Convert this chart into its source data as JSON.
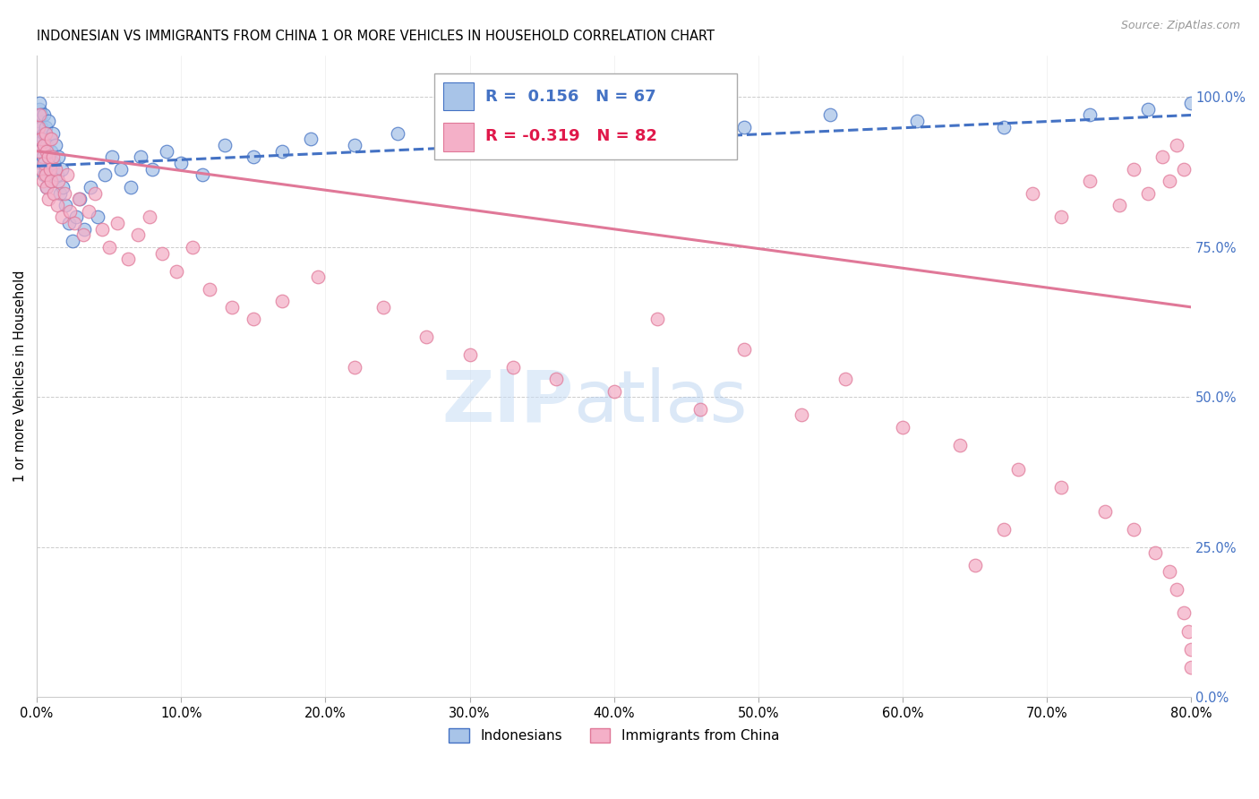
{
  "title": "INDONESIAN VS IMMIGRANTS FROM CHINA 1 OR MORE VEHICLES IN HOUSEHOLD CORRELATION CHART",
  "source": "Source: ZipAtlas.com",
  "ylabel": "1 or more Vehicles in Household",
  "xlabel_vals": [
    0,
    10,
    20,
    30,
    40,
    50,
    60,
    70,
    80
  ],
  "ylabel_vals": [
    0,
    25,
    50,
    75,
    100
  ],
  "xlim": [
    0,
    80
  ],
  "ylim": [
    0,
    107
  ],
  "legend_label1": "Indonesians",
  "legend_label2": "Immigrants from China",
  "r1": 0.156,
  "n1": 67,
  "r2": -0.319,
  "n2": 82,
  "color_blue": "#a8c4e8",
  "color_pink": "#f4b0c8",
  "color_blue_dark": "#4472c4",
  "color_pink_dark": "#e07898",
  "color_blue_text": "#4472c4",
  "color_pink_text": "#e0184a",
  "trend_blue_x0": 0,
  "trend_blue_y0": 88.5,
  "trend_blue_x1": 80,
  "trend_blue_y1": 97.0,
  "trend_pink_x0": 0,
  "trend_pink_y0": 91.0,
  "trend_pink_x1": 80,
  "trend_pink_y1": 65.0,
  "indonesian_x": [
    0.1,
    0.1,
    0.2,
    0.2,
    0.2,
    0.3,
    0.3,
    0.3,
    0.4,
    0.4,
    0.5,
    0.5,
    0.5,
    0.5,
    0.6,
    0.6,
    0.7,
    0.7,
    0.8,
    0.8,
    0.9,
    0.9,
    1.0,
    1.0,
    1.1,
    1.2,
    1.3,
    1.4,
    1.5,
    1.6,
    1.7,
    1.8,
    2.0,
    2.2,
    2.5,
    2.7,
    3.0,
    3.3,
    3.7,
    4.2,
    4.7,
    5.2,
    5.8,
    6.5,
    7.2,
    8.0,
    9.0,
    10.0,
    11.5,
    13.0,
    15.0,
    17.0,
    19.0,
    22.0,
    25.0,
    29.0,
    33.0,
    38.0,
    43.0,
    49.0,
    55.0,
    61.0,
    67.0,
    73.0,
    77.0,
    80.0,
    82.0
  ],
  "indonesian_y": [
    96,
    93,
    98,
    99,
    91,
    95,
    97,
    89,
    93,
    90,
    97,
    94,
    92,
    87,
    95,
    88,
    92,
    85,
    96,
    90,
    88,
    93,
    91,
    86,
    94,
    89,
    92,
    87,
    90,
    84,
    88,
    85,
    82,
    79,
    76,
    80,
    83,
    78,
    85,
    80,
    87,
    90,
    88,
    85,
    90,
    88,
    91,
    89,
    87,
    92,
    90,
    91,
    93,
    92,
    94,
    92,
    95,
    94,
    96,
    95,
    97,
    96,
    95,
    97,
    98,
    99,
    101
  ],
  "china_x": [
    0.1,
    0.2,
    0.2,
    0.3,
    0.3,
    0.4,
    0.5,
    0.5,
    0.6,
    0.6,
    0.7,
    0.7,
    0.8,
    0.8,
    0.9,
    1.0,
    1.0,
    1.1,
    1.2,
    1.3,
    1.4,
    1.5,
    1.7,
    1.9,
    2.1,
    2.3,
    2.6,
    2.9,
    3.2,
    3.6,
    4.0,
    4.5,
    5.0,
    5.6,
    6.3,
    7.0,
    7.8,
    8.7,
    9.7,
    10.8,
    12.0,
    13.5,
    15.0,
    17.0,
    19.5,
    22.0,
    24.0,
    27.0,
    30.0,
    33.0,
    36.0,
    40.0,
    43.0,
    46.0,
    49.0,
    53.0,
    56.0,
    60.0,
    64.0,
    68.0,
    71.0,
    74.0,
    76.0,
    77.5,
    78.5,
    79.0,
    79.5,
    79.8,
    80.0,
    80.0,
    79.5,
    79.0,
    78.5,
    78.0,
    77.0,
    76.0,
    75.0,
    73.0,
    71.0,
    69.0,
    67.0,
    65.0
  ],
  "china_y": [
    95,
    91,
    97,
    88,
    93,
    86,
    92,
    89,
    94,
    87,
    91,
    85,
    90,
    83,
    88,
    93,
    86,
    90,
    84,
    88,
    82,
    86,
    80,
    84,
    87,
    81,
    79,
    83,
    77,
    81,
    84,
    78,
    75,
    79,
    73,
    77,
    80,
    74,
    71,
    75,
    68,
    65,
    63,
    66,
    70,
    55,
    65,
    60,
    57,
    55,
    53,
    51,
    63,
    48,
    58,
    47,
    53,
    45,
    42,
    38,
    35,
    31,
    28,
    24,
    21,
    18,
    14,
    11,
    8,
    5,
    88,
    92,
    86,
    90,
    84,
    88,
    82,
    86,
    80,
    84,
    28,
    22
  ]
}
